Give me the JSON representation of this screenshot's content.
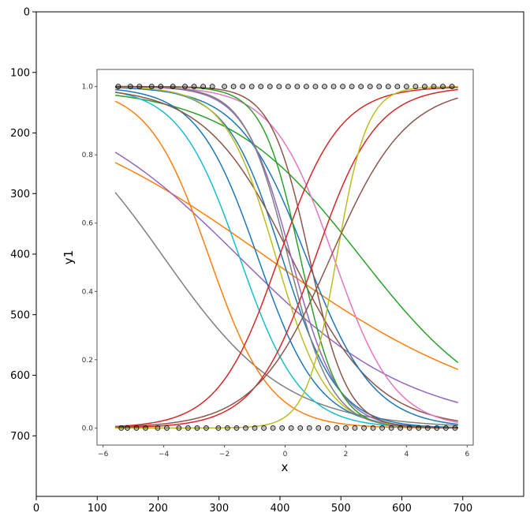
{
  "chart_data": [
    {
      "type": "image-frame",
      "x_ticks": [
        "0",
        "100",
        "200",
        "300",
        "400",
        "500",
        "600",
        "700"
      ],
      "y_ticks": [
        "0",
        "100",
        "200",
        "300",
        "400",
        "500",
        "600",
        "700"
      ],
      "xlim": [
        0,
        800
      ],
      "ylim": [
        800,
        0
      ]
    },
    {
      "type": "line",
      "xlabel": "x",
      "ylabel": "y1",
      "x_ticks": [
        "−6",
        "−4",
        "−2",
        "0",
        "2",
        "4",
        "6"
      ],
      "y_ticks": [
        "0.0",
        "0.2",
        "0.4",
        "0.6",
        "0.8",
        "1.0"
      ],
      "xlim": [
        -6.2,
        6.2
      ],
      "ylim": [
        -0.05,
        1.05
      ],
      "x_range": [
        -5.6,
        5.7
      ],
      "grid": false,
      "series": [
        {
          "color": "#ff7f0e",
          "k": -0.25,
          "x0": -0.6
        },
        {
          "color": "#9467bd",
          "k": -0.35,
          "x0": -1.5
        },
        {
          "color": "#2ca02c",
          "k": -0.45,
          "x0": 2.5
        },
        {
          "color": "#7f7f7f",
          "k": -0.5,
          "x0": -4.0
        },
        {
          "color": "#ff7f0e",
          "k": -1.0,
          "x0": -2.5
        },
        {
          "color": "#17becf",
          "k": -1.0,
          "x0": -1.5
        },
        {
          "color": "#1f77b4",
          "k": -1.0,
          "x0": -0.9
        },
        {
          "color": "#1f77b4",
          "k": -1.1,
          "x0": -0.1
        },
        {
          "color": "#8c564b",
          "k": -0.7,
          "x0": 0.2
        },
        {
          "color": "#1f77b4",
          "k": -0.9,
          "x0": 0.7
        },
        {
          "color": "#bcbd22",
          "k": -1.2,
          "x0": -0.3
        },
        {
          "color": "#9467bd",
          "k": -1.3,
          "x0": 0.2
        },
        {
          "color": "#e377c2",
          "k": -1.0,
          "x0": 1.6
        },
        {
          "color": "#2ca02c",
          "k": -1.6,
          "x0": 0.5
        },
        {
          "color": "#7f7f7f",
          "k": -1.4,
          "x0": 0.1
        },
        {
          "color": "#8c564b",
          "k": -1.6,
          "x0": 0.8
        },
        {
          "color": "#d62728",
          "k": 1.0,
          "x0": -0.2
        },
        {
          "color": "#d62728",
          "k": 1.0,
          "x0": 1.0
        },
        {
          "color": "#bcbd22",
          "k": 2.0,
          "x0": 1.7
        },
        {
          "color": "#8c564b",
          "k": 0.8,
          "x0": 1.5
        }
      ],
      "data_points": {
        "y": [
          0,
          1
        ],
        "x_at_y0": [
          -5.4,
          -5.2,
          -4.9,
          -4.6,
          -4.2,
          -3.9,
          -3.5,
          -3.2,
          -2.9,
          -2.6,
          -2.2,
          -1.9,
          -1.6,
          -1.3,
          -1.0,
          -0.7,
          -0.4,
          -0.1,
          0.2,
          0.5,
          0.8,
          1.1,
          1.4,
          1.7,
          2.0,
          2.3,
          2.6,
          2.9,
          3.2,
          3.5,
          3.8,
          4.1,
          4.4,
          4.7,
          5.0,
          5.3,
          5.6
        ],
        "x_at_y1": [
          -5.5,
          -5.1,
          -4.8,
          -4.4,
          -4.1,
          -3.7,
          -3.3,
          -3.0,
          -2.7,
          -2.4,
          -2.0,
          -1.7,
          -1.4,
          -1.1,
          -0.8,
          -0.5,
          -0.2,
          0.1,
          0.4,
          0.7,
          1.0,
          1.3,
          1.6,
          1.9,
          2.2,
          2.5,
          2.8,
          3.1,
          3.4,
          3.7,
          4.0,
          4.3,
          4.6,
          4.9,
          5.2,
          5.5
        ]
      }
    }
  ]
}
